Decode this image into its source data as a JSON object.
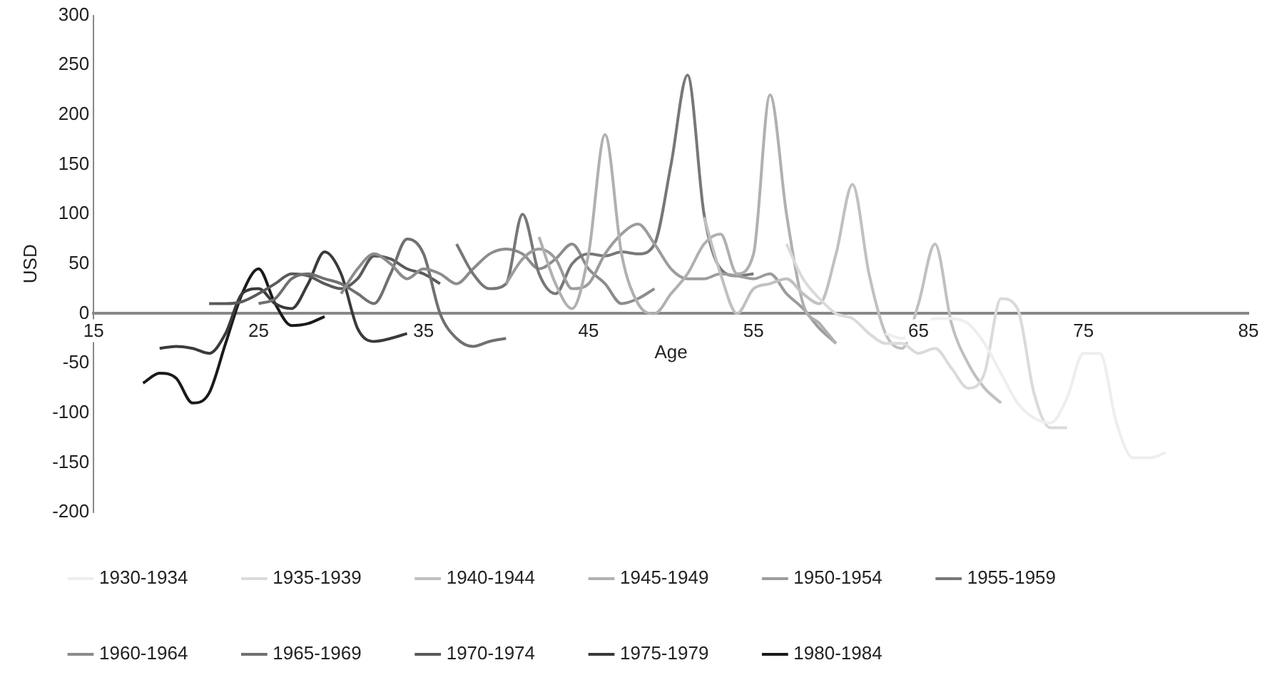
{
  "chart_data": {
    "type": "line",
    "xlabel": "Age",
    "ylabel": "USD",
    "xlim": [
      15,
      85
    ],
    "xticks": [
      15,
      25,
      35,
      45,
      55,
      65,
      75,
      85
    ],
    "ylim": [
      -200,
      300
    ],
    "yticks": [
      -200,
      -150,
      -100,
      -50,
      0,
      50,
      100,
      150,
      200,
      250,
      300
    ],
    "grid": false,
    "legend": "bottom",
    "series": [
      {
        "name": "1930-1934",
        "color": "#eeeeee",
        "x": [
          63,
          64,
          65,
          66,
          67,
          68,
          69,
          70,
          71,
          72,
          73,
          74,
          75,
          76,
          77,
          78,
          79,
          80
        ],
        "values": [
          -20,
          -25,
          -15,
          -5,
          -5,
          -10,
          -30,
          -60,
          -90,
          -105,
          -110,
          -85,
          -40,
          -40,
          -110,
          -145,
          -145,
          -140
        ]
      },
      {
        "name": "1935-1939",
        "color": "#dadada",
        "x": [
          57,
          58,
          59,
          60,
          61,
          62,
          63,
          64,
          65,
          66,
          67,
          68,
          69,
          70,
          71,
          72,
          73,
          74
        ],
        "values": [
          70,
          35,
          15,
          0,
          -5,
          -20,
          -30,
          -30,
          -40,
          -35,
          -55,
          -75,
          -60,
          15,
          5,
          -80,
          -115,
          -115
        ]
      },
      {
        "name": "1940-1944",
        "color": "#c0c0c0",
        "x": [
          52,
          53,
          54,
          55,
          56,
          57,
          58,
          59,
          60,
          61,
          62,
          63,
          64,
          65,
          66,
          67,
          68,
          69,
          70
        ],
        "values": [
          97,
          40,
          0,
          25,
          30,
          35,
          20,
          10,
          60,
          130,
          40,
          -20,
          -35,
          10,
          70,
          -10,
          -50,
          -75,
          -90
        ]
      },
      {
        "name": "1945-1949",
        "color": "#b0b0b0",
        "x": [
          42,
          43,
          44,
          45,
          46,
          47,
          48,
          49,
          50,
          51,
          52,
          53,
          54,
          55,
          56,
          57,
          58,
          59,
          60
        ],
        "values": [
          77,
          30,
          5,
          60,
          180,
          60,
          10,
          0,
          20,
          40,
          70,
          80,
          40,
          60,
          220,
          100,
          10,
          -10,
          -30
        ]
      },
      {
        "name": "1950-1954",
        "color": "#9c9c9c",
        "x": [
          40,
          41,
          42,
          43,
          44,
          45,
          46,
          47,
          48,
          49,
          50,
          51,
          52,
          53,
          54,
          55,
          56,
          57,
          58,
          59,
          60
        ],
        "values": [
          30,
          55,
          65,
          55,
          25,
          30,
          60,
          80,
          90,
          70,
          45,
          35,
          35,
          40,
          38,
          35,
          40,
          20,
          5,
          -15,
          -30
        ]
      },
      {
        "name": "1955-1959",
        "color": "#777777",
        "x": [
          37,
          38,
          39,
          40,
          41,
          42,
          43,
          44,
          45,
          46,
          47,
          48,
          49,
          50,
          51,
          52,
          53,
          54,
          55
        ],
        "values": [
          70,
          40,
          25,
          30,
          100,
          40,
          20,
          50,
          60,
          58,
          62,
          60,
          70,
          150,
          240,
          100,
          45,
          38,
          40
        ]
      },
      {
        "name": "1960-1964",
        "color": "#8c8c8c",
        "x": [
          30,
          31,
          32,
          33,
          34,
          35,
          36,
          37,
          38,
          39,
          40,
          41,
          42,
          43,
          44,
          45,
          46,
          47,
          48,
          49
        ],
        "values": [
          20,
          45,
          60,
          50,
          35,
          45,
          40,
          30,
          45,
          60,
          65,
          60,
          45,
          55,
          70,
          45,
          30,
          10,
          15,
          25
        ]
      },
      {
        "name": "1965-1969",
        "color": "#707070",
        "x": [
          25,
          26,
          27,
          28,
          29,
          30,
          31,
          32,
          33,
          34,
          35,
          36,
          37,
          38,
          39,
          40
        ],
        "values": [
          10,
          15,
          35,
          40,
          35,
          30,
          20,
          10,
          40,
          75,
          60,
          0,
          -25,
          -33,
          -28,
          -25
        ]
      },
      {
        "name": "1970-1974",
        "color": "#5a5a5a",
        "x": [
          22,
          23,
          24,
          25,
          26,
          27,
          28,
          29,
          30,
          31,
          32,
          33,
          34,
          35,
          36
        ],
        "values": [
          10,
          10,
          12,
          20,
          30,
          40,
          38,
          30,
          25,
          35,
          58,
          55,
          45,
          40,
          30
        ]
      },
      {
        "name": "1975-1979",
        "color": "#3a3a3a",
        "x": [
          19,
          20,
          21,
          22,
          23,
          24,
          25,
          26,
          27,
          28,
          29,
          30,
          31,
          32,
          33,
          34
        ],
        "values": [
          -35,
          -33,
          -35,
          -40,
          -20,
          20,
          25,
          10,
          5,
          30,
          62,
          40,
          -15,
          -28,
          -25,
          -20
        ]
      },
      {
        "name": "1980-1984",
        "color": "#1a1a1a",
        "x": [
          18,
          19,
          20,
          21,
          22,
          23,
          24,
          25,
          26,
          27,
          28,
          29
        ],
        "values": [
          -70,
          -60,
          -65,
          -90,
          -80,
          -30,
          20,
          45,
          10,
          -12,
          -10,
          -3
        ]
      }
    ]
  }
}
